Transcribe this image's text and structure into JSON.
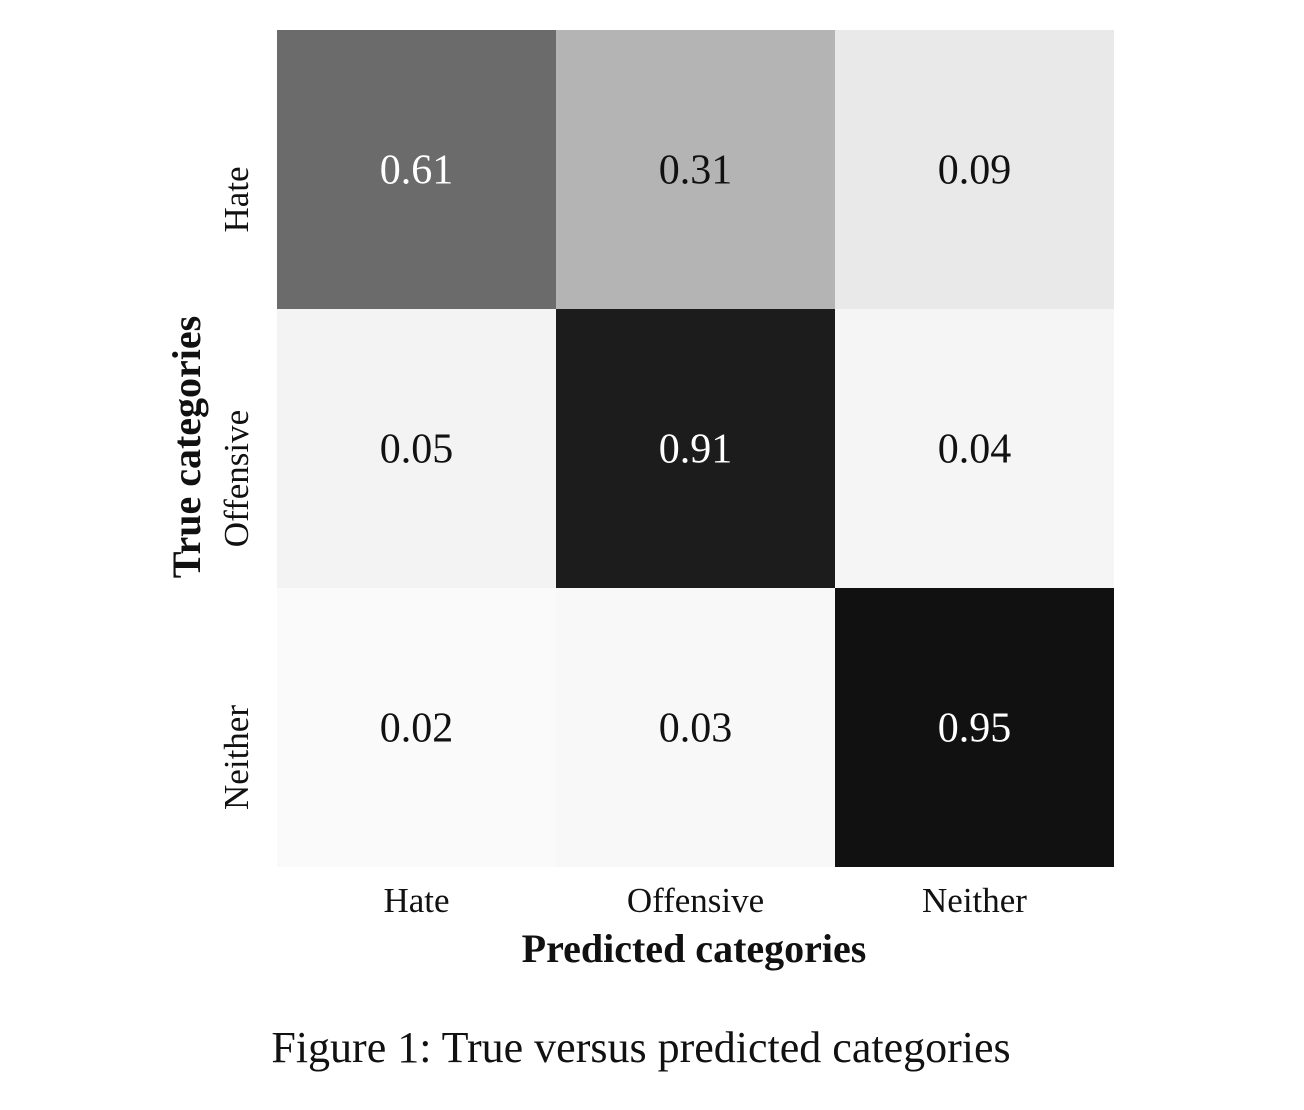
{
  "chart_data": {
    "type": "heatmap",
    "title": "",
    "xlabel": "Predicted categories",
    "ylabel": "True categories",
    "x_categories": [
      "Hate",
      "Offensive",
      "Neither"
    ],
    "y_categories": [
      "Hate",
      "Offensive",
      "Neither"
    ],
    "values": [
      [
        0.61,
        0.31,
        0.09
      ],
      [
        0.05,
        0.91,
        0.04
      ],
      [
        0.02,
        0.03,
        0.95
      ]
    ],
    "value_range": [
      0,
      1
    ],
    "colormap": "greys",
    "colors": {
      "low": "#ffffff",
      "high": "#000000"
    },
    "grid": false,
    "legend": "none"
  },
  "caption": "Figure 1: True versus predicted categories"
}
